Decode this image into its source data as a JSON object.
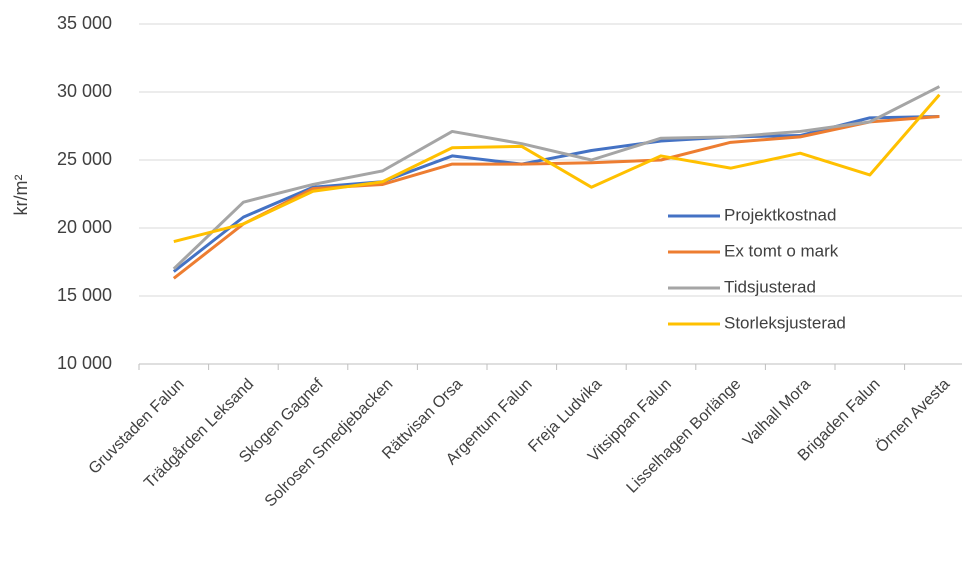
{
  "chart_data": {
    "type": "line",
    "y_label": "kr/m²",
    "categories": [
      "Gruvstaden Falun",
      "Trädgården Leksand",
      "Skogen Gagnef",
      "Solrosen Smedjebacken",
      "Rättvisan Orsa",
      "Argentum Falun",
      "Freja Ludvika",
      "Vitsippan Falun",
      "Lisselhagen Borlänge",
      "Valhall Mora",
      "Brigaden Falun",
      "Örnen Avesta"
    ],
    "series": [
      {
        "name": "Projektkostnad",
        "color": "#4472c4",
        "values": [
          16800,
          20800,
          23000,
          23400,
          25300,
          24700,
          25700,
          26400,
          26700,
          26800,
          28100,
          28200
        ]
      },
      {
        "name": "Ex tomt o mark",
        "color": "#ed7d31",
        "values": [
          16300,
          20300,
          22900,
          23200,
          24700,
          24700,
          24800,
          25000,
          26300,
          26700,
          27800,
          28200
        ]
      },
      {
        "name": "Tidsjusterad",
        "color": "#a5a5a5",
        "values": [
          17000,
          21900,
          23200,
          24200,
          27100,
          26200,
          25000,
          26600,
          26700,
          27100,
          27800,
          30400
        ]
      },
      {
        "name": "Storleksjusterad",
        "color": "#ffc000",
        "values": [
          19000,
          20300,
          22700,
          23400,
          25900,
          26000,
          23000,
          25300,
          24400,
          25500,
          23900,
          29800
        ]
      }
    ],
    "ylim": [
      10000,
      35000
    ],
    "yticks": [
      {
        "value": 10000,
        "label": "10 000"
      },
      {
        "value": 15000,
        "label": "15 000"
      },
      {
        "value": 20000,
        "label": "20 000"
      },
      {
        "value": 25000,
        "label": "25 000"
      },
      {
        "value": 30000,
        "label": "30 000"
      },
      {
        "value": 35000,
        "label": "35 000"
      }
    ],
    "grid": true,
    "legend": "right"
  }
}
